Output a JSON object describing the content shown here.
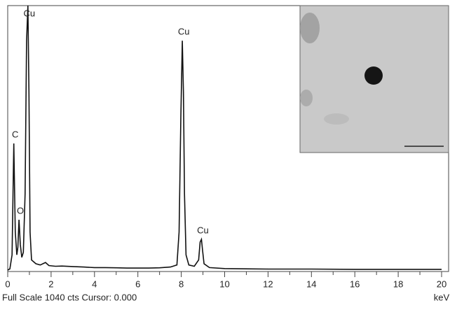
{
  "chart_data": {
    "type": "line",
    "xlim": [
      0,
      20
    ],
    "ylim": [
      0,
      1040
    ],
    "xticks": [
      0,
      2,
      4,
      6,
      8,
      10,
      12,
      14,
      16,
      18,
      20
    ],
    "xminorticks": [
      1,
      3,
      5,
      7,
      9,
      11,
      13,
      15,
      17,
      19
    ],
    "x_label": "keV",
    "footer": "Full Scale 1040 cts Cursor: 0.000",
    "series": [
      {
        "color": "#111111",
        "x": [
          0,
          0.1,
          0.2,
          0.28,
          0.35,
          0.42,
          0.47,
          0.52,
          0.58,
          0.65,
          0.72,
          0.8,
          0.87,
          0.93,
          0.98,
          1.03,
          1.1,
          1.3,
          1.5,
          1.74,
          1.9,
          2.2,
          2.5,
          3,
          3.5,
          4,
          4.5,
          5,
          5.5,
          6,
          6.5,
          7,
          7.5,
          7.8,
          7.9,
          7.98,
          8.05,
          8.1,
          8.15,
          8.22,
          8.35,
          8.6,
          8.8,
          8.87,
          8.93,
          8.98,
          9.05,
          9.3,
          10,
          11,
          12,
          14,
          16,
          18,
          20
        ],
        "values": [
          0,
          5,
          60,
          498,
          150,
          60,
          90,
          198,
          100,
          50,
          70,
          300,
          900,
          1040,
          700,
          150,
          40,
          25,
          20,
          30,
          18,
          15,
          16,
          14,
          12,
          10,
          10,
          9,
          8,
          8,
          8,
          9,
          12,
          20,
          150,
          600,
          902,
          700,
          300,
          60,
          20,
          15,
          40,
          110,
          121,
          80,
          25,
          10,
          6,
          5,
          4,
          4,
          3,
          3,
          3
        ]
      }
    ],
    "annotations": [
      {
        "text": "C",
        "x": 0.28
      },
      {
        "text": "O",
        "x": 0.52
      },
      {
        "text": "Cu",
        "x": 0.93
      },
      {
        "text": "Cu",
        "x": 8.05
      },
      {
        "text": "Cu",
        "x": 8.93
      }
    ]
  }
}
